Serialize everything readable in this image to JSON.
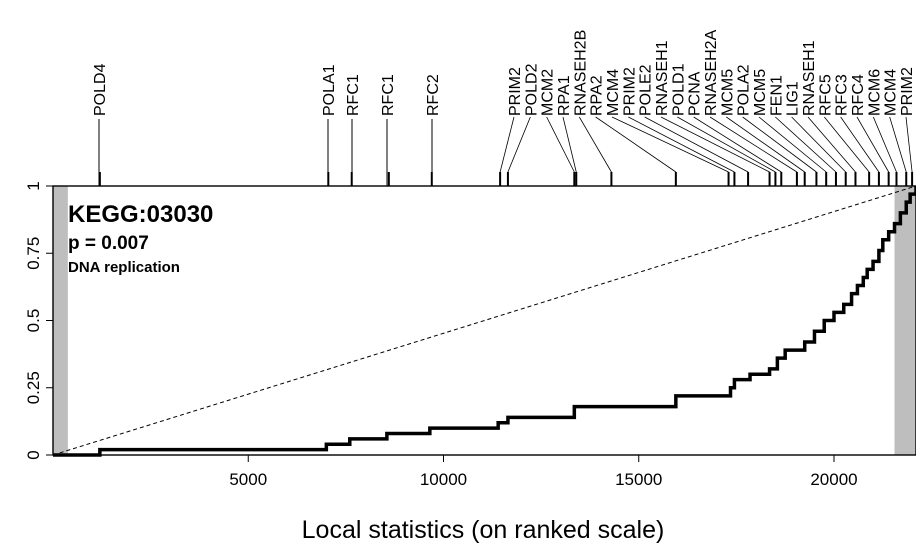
{
  "chart_data": {
    "type": "line",
    "title": "KEGG:03030",
    "annotations": [
      "p = 0.007",
      "DNA replication"
    ],
    "xlabel": "Local statistics (on ranked scale)",
    "ylabel": "",
    "xlim": [
      0,
      22100
    ],
    "ylim": [
      0,
      1
    ],
    "x_ticks": [
      5000,
      10000,
      15000,
      20000
    ],
    "y_ticks": [
      0,
      0.25,
      0.5,
      0.75,
      1
    ],
    "y_tick_labels": [
      "0",
      "0.25",
      "0.5",
      "0.75",
      "1"
    ],
    "shaded_regions": [
      [
        0,
        380
      ],
      [
        21550,
        22100
      ]
    ],
    "reference_line": {
      "from": [
        0,
        0
      ],
      "to": [
        22100,
        1
      ],
      "style": "dashed"
    },
    "genes": [
      {
        "name": "POLD4",
        "rank": 1200
      },
      {
        "name": "POLA1",
        "rank": 7050
      },
      {
        "name": "RFC1",
        "rank": 7650
      },
      {
        "name": "RFC1",
        "rank": 8600
      },
      {
        "name": "RFC2",
        "rank": 9700
      },
      {
        "name": "PRIM2",
        "rank": 11450
      },
      {
        "name": "POLD2",
        "rank": 11650
      },
      {
        "name": "MCM2",
        "rank": 13350
      },
      {
        "name": "RPA1",
        "rank": 13400
      },
      {
        "name": "RNASEH2B",
        "rank": 14300
      },
      {
        "name": "RPA2",
        "rank": 15950
      },
      {
        "name": "MCM4",
        "rank": 17300
      },
      {
        "name": "PRIM2",
        "rank": 17450
      },
      {
        "name": "POLE2",
        "rank": 17800
      },
      {
        "name": "RNASEH1",
        "rank": 18350
      },
      {
        "name": "POLD1",
        "rank": 18500
      },
      {
        "name": "PCNA",
        "rank": 18650
      },
      {
        "name": "RNASEH2A",
        "rank": 19050
      },
      {
        "name": "MCM5",
        "rank": 19250
      },
      {
        "name": "POLA2",
        "rank": 19550
      },
      {
        "name": "MCM5",
        "rank": 19800
      },
      {
        "name": "FEN1",
        "rank": 20050
      },
      {
        "name": "LIG1",
        "rank": 20300
      },
      {
        "name": "RNASEH1",
        "rank": 20550
      },
      {
        "name": "RFC5",
        "rank": 20900
      },
      {
        "name": "RFC3",
        "rank": 21150
      },
      {
        "name": "RFC4",
        "rank": 21400
      },
      {
        "name": "MCM6",
        "rank": 21600
      },
      {
        "name": "MCM4",
        "rank": 21850
      },
      {
        "name": "PRIM2",
        "rank": 22000
      }
    ],
    "series": [
      {
        "x": [
          0,
          1200,
          7000,
          7600,
          8550,
          9650,
          11400,
          11650,
          13350,
          14350,
          15950,
          17350,
          17450,
          17850,
          18350,
          18550,
          18750,
          19050,
          19250,
          19500,
          19750,
          20000,
          20250,
          20450,
          20600,
          20750,
          20850,
          21000,
          21150,
          21250,
          21400,
          21550,
          21700,
          21850,
          21950,
          22100
        ],
        "y": [
          0,
          0.02,
          0.04,
          0.06,
          0.08,
          0.1,
          0.12,
          0.14,
          0.18,
          0.18,
          0.22,
          0.25,
          0.28,
          0.3,
          0.32,
          0.36,
          0.39,
          0.39,
          0.42,
          0.46,
          0.5,
          0.53,
          0.56,
          0.6,
          0.63,
          0.66,
          0.69,
          0.72,
          0.76,
          0.8,
          0.83,
          0.86,
          0.9,
          0.94,
          0.97,
          1.0
        ]
      }
    ]
  }
}
